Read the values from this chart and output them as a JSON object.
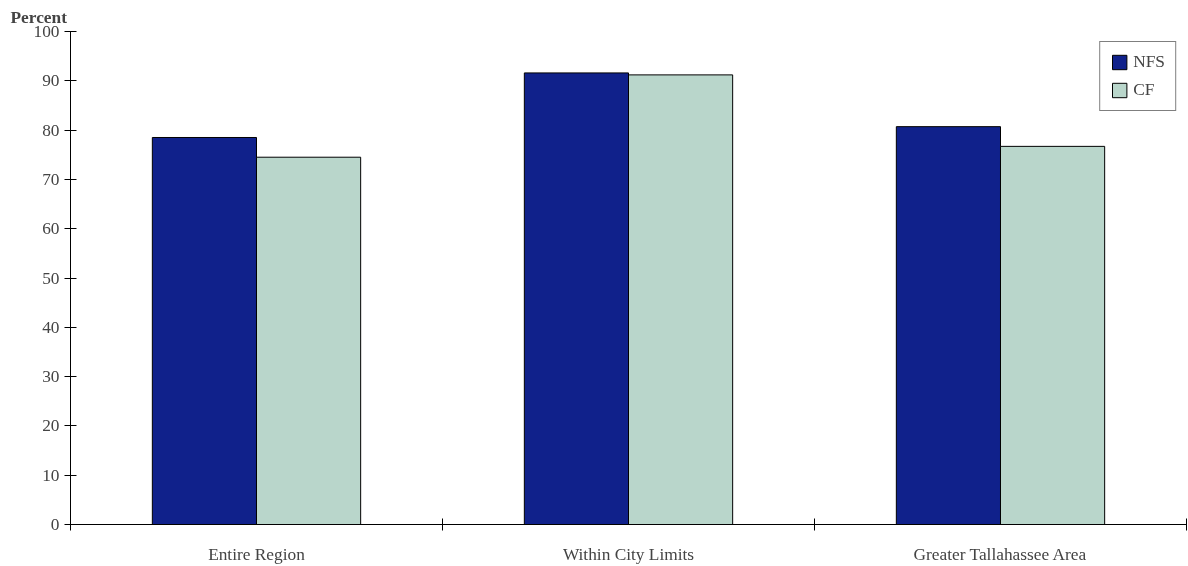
{
  "chart_data": {
    "type": "bar",
    "ylabel": "Percent",
    "categories": [
      "Entire Region",
      "Within City Limits",
      "Greater Tallahassee Area"
    ],
    "series": [
      {
        "name": "NFS",
        "color": "#10218b",
        "values": [
          78.5,
          91.6,
          80.7
        ]
      },
      {
        "name": "CF",
        "color": "#b9d6cb",
        "values": [
          74.5,
          91.2,
          76.7
        ]
      }
    ],
    "ylim": [
      0,
      100
    ],
    "yticks": [
      0,
      10,
      20,
      30,
      40,
      50,
      60,
      70,
      80,
      90,
      100
    ],
    "grid": false,
    "legend": "top right"
  }
}
